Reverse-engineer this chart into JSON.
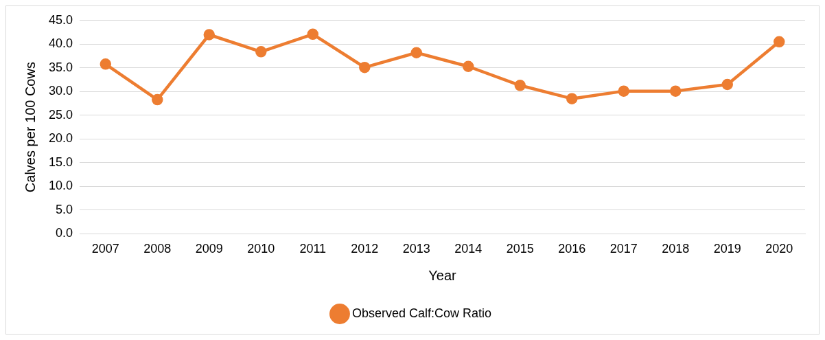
{
  "chart_data": {
    "type": "line",
    "xlabel": "Year",
    "ylabel": "Calves per 100 Cows",
    "categories": [
      "2007",
      "2008",
      "2009",
      "2010",
      "2011",
      "2012",
      "2013",
      "2014",
      "2015",
      "2016",
      "2017",
      "2018",
      "2019",
      "2020"
    ],
    "series": [
      {
        "name": "Observed Calf:Cow Ratio",
        "color": "#ed7d31",
        "values": [
          35.8,
          28.3,
          42.0,
          38.4,
          42.1,
          35.1,
          38.2,
          35.3,
          31.3,
          28.5,
          30.1,
          30.1,
          31.5,
          40.5
        ]
      }
    ],
    "ylim": [
      0,
      45
    ],
    "yticks": [
      {
        "value": 0,
        "label": "0.0"
      },
      {
        "value": 5,
        "label": "5.0"
      },
      {
        "value": 10,
        "label": "10.0"
      },
      {
        "value": 15,
        "label": "15.0"
      },
      {
        "value": 20,
        "label": "20.0"
      },
      {
        "value": 25,
        "label": "25.0"
      },
      {
        "value": 30,
        "label": "30.0"
      },
      {
        "value": 35,
        "label": "35.0"
      },
      {
        "value": 40,
        "label": "40.0"
      },
      {
        "value": 45,
        "label": "45.0"
      }
    ],
    "grid": "y",
    "legend": "bottom",
    "marker": "circle",
    "line_style": "solid"
  }
}
